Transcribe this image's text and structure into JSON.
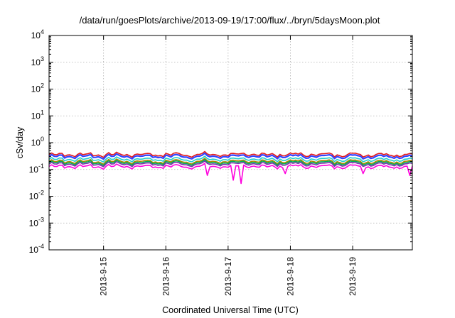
{
  "chart_data": {
    "type": "line",
    "title": "/data/run/goesPlots/archive/2013-09-19/17:00/flux/../bryn/5daysMoon.plot",
    "xlabel": "Coordinated Universal Time (UTC)",
    "ylabel": "cSv/day",
    "yscale": "log",
    "ylim": [
      0.0001,
      10000
    ],
    "xlim": [
      "2013-09-14T03:00",
      "2013-09-19T23:00"
    ],
    "grid": true,
    "y_ticks": [
      {
        "base": "10",
        "exp": "-4",
        "value": 0.0001
      },
      {
        "base": "10",
        "exp": "-3",
        "value": 0.001
      },
      {
        "base": "10",
        "exp": "-2",
        "value": 0.01
      },
      {
        "base": "10",
        "exp": "-1",
        "value": 0.1
      },
      {
        "base": "10",
        "exp": "0",
        "value": 1
      },
      {
        "base": "10",
        "exp": "1",
        "value": 10
      },
      {
        "base": "10",
        "exp": "2",
        "value": 100
      },
      {
        "base": "10",
        "exp": "3",
        "value": 1000
      },
      {
        "base": "10",
        "exp": "4",
        "value": 10000
      }
    ],
    "x_ticks": [
      {
        "label": "2013-9-15",
        "date": "2013-09-15T00:00"
      },
      {
        "label": "2013-9-16",
        "date": "2013-09-16T00:00"
      },
      {
        "label": "2013-9-17",
        "date": "2013-09-17T00:00"
      },
      {
        "label": "2013-9-18",
        "date": "2013-09-18T00:00"
      },
      {
        "label": "2013-9-19",
        "date": "2013-09-19T00:00"
      }
    ],
    "series": [
      {
        "color": "#e41a1c",
        "level": 0.36,
        "dips": []
      },
      {
        "color": "#3344ff",
        "level": 0.31,
        "dips": []
      },
      {
        "color": "#22cccc",
        "level": 0.24,
        "dips": []
      },
      {
        "color": "#aa8800",
        "level": 0.2,
        "dips": []
      },
      {
        "color": "#00aa55",
        "level": 0.18,
        "dips": []
      },
      {
        "color": "#7733aa",
        "level": 0.16,
        "dips": []
      },
      {
        "color": "#ff00dd",
        "level": 0.13,
        "dips": [
          {
            "date": "2013-09-16T16:00",
            "value": 0.06
          },
          {
            "date": "2013-09-17T02:00",
            "value": 0.04
          },
          {
            "date": "2013-09-17T05:00",
            "value": 0.03
          },
          {
            "date": "2013-09-17T22:00",
            "value": 0.07
          },
          {
            "date": "2013-09-19T04:00",
            "value": 0.07
          },
          {
            "date": "2013-09-19T22:00",
            "value": 0.06
          }
        ]
      }
    ]
  }
}
